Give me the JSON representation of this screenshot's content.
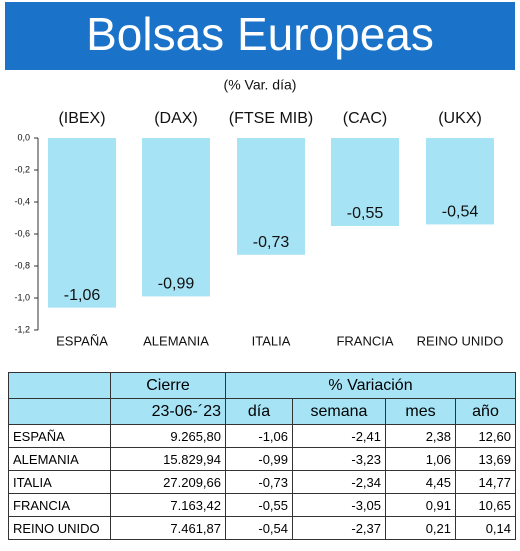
{
  "chart_data": {
    "type": "bar",
    "title": "Bolsas Europeas",
    "subtitle": "(% Var. día)",
    "indices": [
      "(IBEX)",
      "(DAX)",
      "(FTSE MIB)",
      "(CAC)",
      "(UKX)"
    ],
    "categories": [
      "ESPAÑA",
      "ALEMANIA",
      "ITALIA",
      "FRANCIA",
      "REINO UNIDO"
    ],
    "values": [
      -1.06,
      -0.99,
      -0.73,
      -0.55,
      -0.54
    ],
    "value_labels": [
      "-1,06",
      "-0,99",
      "-0,73",
      "-0,55",
      "-0,54"
    ],
    "color": "#a6e3f5",
    "ylim": [
      -1.2,
      0
    ],
    "yticks": [
      {
        "value": 0,
        "label": "0,0"
      },
      {
        "value": -0.2,
        "label": "-0,2"
      },
      {
        "value": -0.4,
        "label": "-0,4"
      },
      {
        "value": -0.6,
        "label": "-0,6"
      },
      {
        "value": -0.8,
        "label": "-0,8"
      },
      {
        "value": -1.0,
        "label": "-1,0"
      },
      {
        "value": -1.2,
        "label": "-1,2"
      }
    ]
  },
  "table": {
    "header": [
      "Cierre",
      "% Variación"
    ],
    "subheader": [
      "23-06-´23",
      "día",
      "semana",
      "mes",
      "año"
    ],
    "rows": [
      [
        "ESPAÑA",
        "9.265,80",
        "-1,06",
        "-2,41",
        "2,38",
        "12,60"
      ],
      [
        "ALEMANIA",
        "15.829,94",
        "-0,99",
        "-3,23",
        "1,06",
        "13,69"
      ],
      [
        "ITALIA",
        "27.209,66",
        "-0,73",
        "-2,34",
        "4,45",
        "14,77"
      ],
      [
        "FRANCIA",
        "7.163,42",
        "-0,55",
        "-3,05",
        "0,91",
        "10,65"
      ],
      [
        "REINO UNIDO",
        "7.461,87",
        "-0,54",
        "-2,37",
        "0,21",
        "0,14"
      ]
    ]
  }
}
